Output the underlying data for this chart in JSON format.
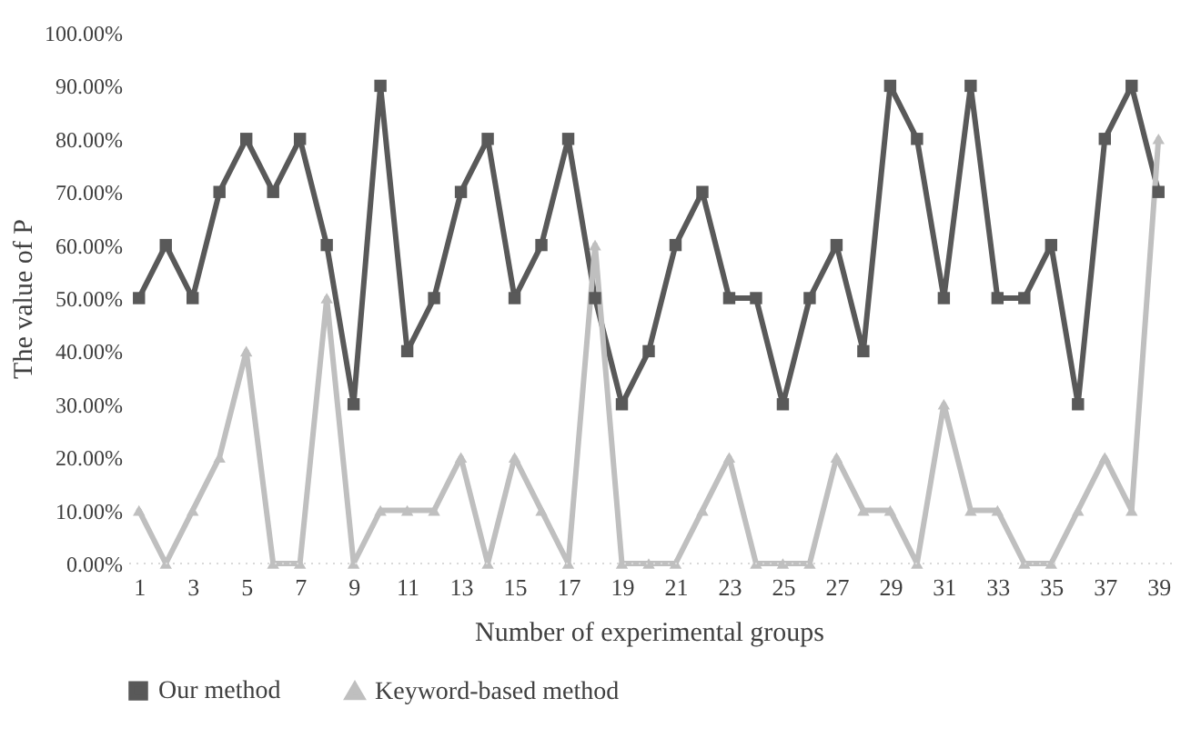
{
  "chart_data": {
    "type": "line",
    "xlabel": "Number of experimental groups",
    "ylabel": "The value of P",
    "x": [
      1,
      2,
      3,
      4,
      5,
      6,
      7,
      8,
      9,
      10,
      11,
      12,
      13,
      14,
      15,
      16,
      17,
      18,
      19,
      20,
      21,
      22,
      23,
      24,
      25,
      26,
      27,
      28,
      29,
      30,
      31,
      32,
      33,
      34,
      35,
      36,
      37,
      38,
      39
    ],
    "xlim": [
      0.5,
      39.5
    ],
    "xticks": [
      1,
      3,
      5,
      7,
      9,
      11,
      13,
      15,
      17,
      19,
      21,
      23,
      25,
      27,
      29,
      31,
      33,
      35,
      37,
      39
    ],
    "ylim": [
      0,
      100
    ],
    "yticks": [
      {
        "value": 0,
        "label": "0.00%"
      },
      {
        "value": 10,
        "label": "10.00%"
      },
      {
        "value": 20,
        "label": "20.00%"
      },
      {
        "value": 30,
        "label": "30.00%"
      },
      {
        "value": 40,
        "label": "40.00%"
      },
      {
        "value": 50,
        "label": "50.00%"
      },
      {
        "value": 60,
        "label": "60.00%"
      },
      {
        "value": 70,
        "label": "70.00%"
      },
      {
        "value": 80,
        "label": "80.00%"
      },
      {
        "value": 90,
        "label": "90.00%"
      },
      {
        "value": 100,
        "label": "100.00%"
      }
    ],
    "series": [
      {
        "name": "Our method",
        "color": "#595959",
        "marker": "square",
        "values": [
          50,
          60,
          50,
          70,
          80,
          70,
          80,
          60,
          30,
          90,
          40,
          50,
          70,
          80,
          50,
          60,
          80,
          50,
          30,
          40,
          60,
          70,
          50,
          50,
          30,
          50,
          60,
          40,
          90,
          80,
          50,
          90,
          50,
          50,
          60,
          30,
          80,
          90,
          70
        ]
      },
      {
        "name": "Keyword-based method",
        "color": "#bfbfbf",
        "marker": "triangle",
        "values": [
          10,
          0,
          10,
          20,
          40,
          0,
          0,
          50,
          0,
          10,
          10,
          10,
          20,
          0,
          20,
          10,
          0,
          60,
          0,
          0,
          0,
          10,
          20,
          0,
          0,
          0,
          20,
          10,
          10,
          0,
          30,
          10,
          10,
          0,
          0,
          10,
          20,
          10,
          80
        ]
      }
    ],
    "ref_lines": [
      {
        "axis": "y",
        "value": 0,
        "color": "#d9d9d9",
        "line_style": "dotted"
      }
    ],
    "grid": false,
    "legend": "bottom",
    "line_style": "solid"
  }
}
